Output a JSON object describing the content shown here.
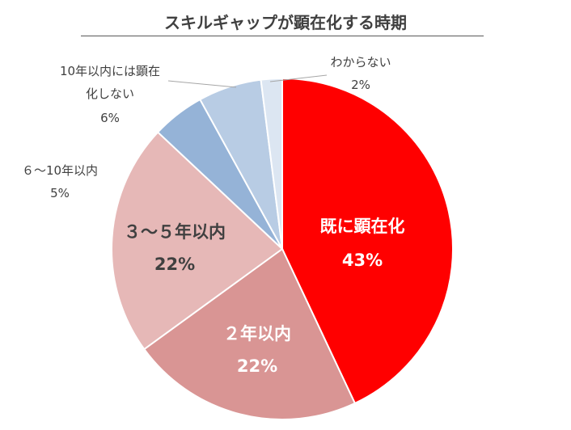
{
  "chart_data": {
    "type": "pie",
    "title": "スキルギャップが顕在化する時期",
    "slices": [
      {
        "label": "既に顕在化",
        "value_label": "43%",
        "value": 43,
        "color": "#ff0000",
        "text_color": "#ffffff"
      },
      {
        "label": "２年以内",
        "value_label": "22%",
        "value": 22,
        "color": "#d99594",
        "text_color": "#ffffff"
      },
      {
        "label": "３～５年以内",
        "value_label": "22%",
        "value": 22,
        "color": "#e6b8b7",
        "text_color": "#404040"
      },
      {
        "label": "６～10年以内",
        "value_label": "5%",
        "value": 5,
        "color": "#95b3d7",
        "text_color": "#404040"
      },
      {
        "label_lines": [
          "10年以内には顕在",
          "化しない"
        ],
        "value_label": "6%",
        "value": 6,
        "color": "#b8cce4",
        "text_color": "#404040"
      },
      {
        "label": "わからない",
        "value_label": "2%",
        "value": 2,
        "color": "#dce6f2",
        "text_color": "#404040"
      }
    ]
  }
}
